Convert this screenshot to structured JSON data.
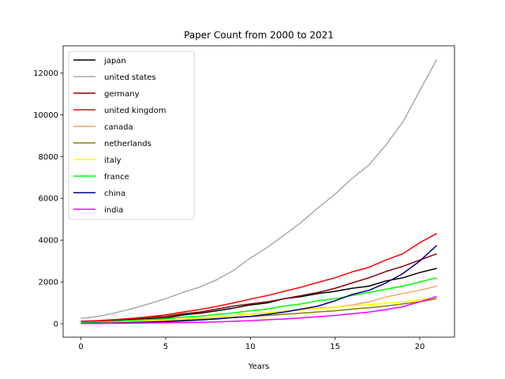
{
  "chart_data": {
    "type": "line",
    "title": "Paper Count from 2000 to 2021",
    "xlabel": "Years",
    "ylabel": "",
    "xlim": [
      -1.05,
      22.05
    ],
    "ylim": [
      -640,
      13300
    ],
    "xticks": [
      0,
      5,
      10,
      15,
      20
    ],
    "yticks": [
      0,
      2000,
      4000,
      6000,
      8000,
      10000,
      12000
    ],
    "grid": false,
    "legend_position": "top-left",
    "x": [
      0,
      1,
      2,
      3,
      4,
      5,
      6,
      7,
      8,
      9,
      10,
      11,
      12,
      13,
      14,
      15,
      16,
      17,
      18,
      19,
      20,
      21
    ],
    "series": [
      {
        "name": "japan",
        "color": "#000000",
        "values": [
          80,
          110,
          150,
          200,
          240,
          280,
          420,
          500,
          620,
          750,
          900,
          1000,
          1200,
          1300,
          1450,
          1550,
          1700,
          1800,
          2050,
          2200,
          2450,
          2650
        ]
      },
      {
        "name": "united states",
        "color": "#a9a9a9",
        "values": [
          260,
          350,
          520,
          720,
          950,
          1200,
          1500,
          1750,
          2100,
          2550,
          3150,
          3650,
          4250,
          4850,
          5550,
          6200,
          6950,
          7600,
          8550,
          9650,
          11150,
          12650
        ]
      },
      {
        "name": "germany",
        "color": "#8b0000",
        "values": [
          100,
          130,
          180,
          240,
          300,
          350,
          480,
          560,
          700,
          850,
          950,
          1050,
          1200,
          1350,
          1500,
          1700,
          1950,
          2200,
          2500,
          2750,
          3050,
          3350
        ]
      },
      {
        "name": "united kingdom",
        "color": "#ff0000",
        "values": [
          120,
          150,
          200,
          260,
          340,
          420,
          560,
          680,
          830,
          1000,
          1180,
          1350,
          1550,
          1750,
          1980,
          2200,
          2480,
          2700,
          3050,
          3350,
          3880,
          4320
        ]
      },
      {
        "name": "canada",
        "color": "#f4a460",
        "values": [
          40,
          60,
          80,
          110,
          140,
          170,
          230,
          270,
          330,
          400,
          470,
          530,
          610,
          680,
          750,
          800,
          900,
          1050,
          1280,
          1450,
          1600,
          1800
        ]
      },
      {
        "name": "netherlands",
        "color": "#808000",
        "values": [
          30,
          45,
          60,
          80,
          100,
          120,
          170,
          200,
          250,
          300,
          350,
          400,
          450,
          510,
          570,
          620,
          700,
          770,
          850,
          950,
          1050,
          1200
        ]
      },
      {
        "name": "italy",
        "color": "#ffff00",
        "values": [
          50,
          70,
          90,
          120,
          150,
          180,
          230,
          280,
          340,
          400,
          450,
          520,
          590,
          660,
          720,
          790,
          860,
          920,
          980,
          1050,
          1150,
          1250
        ]
      },
      {
        "name": "france",
        "color": "#00ff00",
        "values": [
          70,
          90,
          120,
          160,
          200,
          240,
          320,
          360,
          440,
          520,
          620,
          700,
          850,
          950,
          1100,
          1200,
          1350,
          1500,
          1650,
          1800,
          2000,
          2200
        ]
      },
      {
        "name": "china",
        "color": "#00008b",
        "values": [
          20,
          30,
          40,
          60,
          80,
          100,
          140,
          180,
          230,
          300,
          350,
          450,
          560,
          700,
          850,
          1100,
          1400,
          1600,
          1950,
          2400,
          3000,
          3750
        ]
      },
      {
        "name": "india",
        "color": "#ff00ff",
        "values": [
          10,
          15,
          20,
          30,
          40,
          50,
          60,
          70,
          90,
          120,
          150,
          190,
          230,
          280,
          340,
          400,
          480,
          560,
          680,
          820,
          1050,
          1300
        ]
      }
    ]
  }
}
